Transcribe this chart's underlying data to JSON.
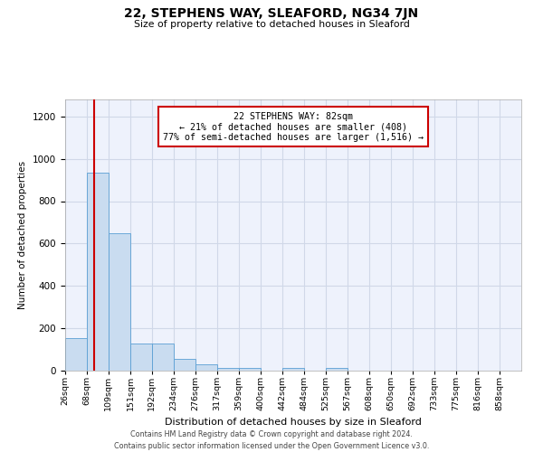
{
  "title": "22, STEPHENS WAY, SLEAFORD, NG34 7JN",
  "subtitle": "Size of property relative to detached houses in Sleaford",
  "xlabel": "Distribution of detached houses by size in Sleaford",
  "ylabel": "Number of detached properties",
  "footer_line1": "Contains HM Land Registry data © Crown copyright and database right 2024.",
  "footer_line2": "Contains public sector information licensed under the Open Government Licence v3.0.",
  "property_size": 82,
  "property_label": "22 STEPHENS WAY: 82sqm",
  "annotation_line1": "← 21% of detached houses are smaller (408)",
  "annotation_line2": "77% of semi-detached houses are larger (1,516) →",
  "bar_color": "#c9dcf0",
  "bar_edge_color": "#5a9fd4",
  "vline_color": "#cc0000",
  "annotation_box_edgecolor": "#cc0000",
  "grid_color": "#d0d8e8",
  "background_color": "#eef2fc",
  "bins": [
    26,
    68,
    109,
    151,
    192,
    234,
    276,
    317,
    359,
    400,
    442,
    484,
    525,
    567,
    608,
    650,
    692,
    733,
    775,
    816,
    858
  ],
  "bin_labels": [
    "26sqm",
    "68sqm",
    "109sqm",
    "151sqm",
    "192sqm",
    "234sqm",
    "276sqm",
    "317sqm",
    "359sqm",
    "400sqm",
    "442sqm",
    "484sqm",
    "525sqm",
    "567sqm",
    "608sqm",
    "650sqm",
    "692sqm",
    "733sqm",
    "775sqm",
    "816sqm",
    "858sqm"
  ],
  "bar_heights": [
    155,
    935,
    650,
    130,
    130,
    57,
    30,
    13,
    13,
    0,
    13,
    0,
    13,
    0,
    0,
    0,
    0,
    0,
    0,
    0,
    0
  ],
  "ylim": [
    0,
    1280
  ],
  "yticks": [
    0,
    200,
    400,
    600,
    800,
    1000,
    1200
  ]
}
